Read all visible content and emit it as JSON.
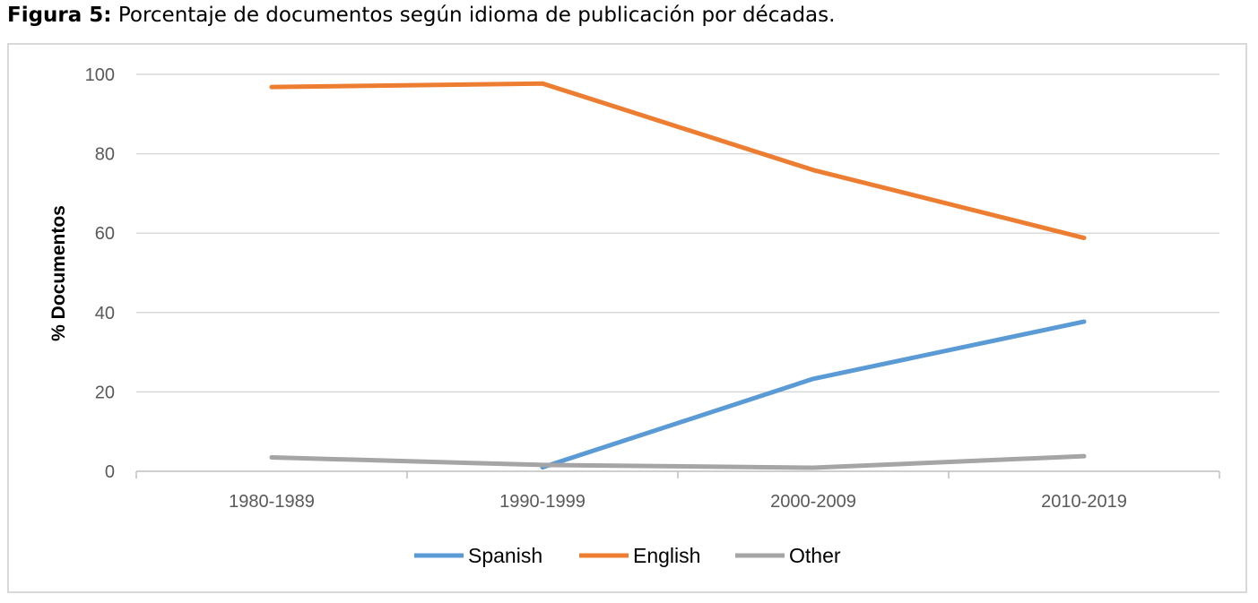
{
  "caption": {
    "label": "Figura 5:",
    "text": "Porcentaje de documentos según idioma de publicación por décadas."
  },
  "chart_data": {
    "type": "line",
    "title": "",
    "xlabel": "",
    "ylabel": "% Documentos",
    "ylim": [
      0,
      100
    ],
    "yticks": [
      0,
      20,
      40,
      60,
      80,
      100
    ],
    "grid": true,
    "legend_position": "bottom",
    "categories": [
      "1980-1989",
      "1990-1999",
      "2000-2009",
      "2010-2019"
    ],
    "series": [
      {
        "name": "Spanish",
        "color": "#5b9bd5",
        "values": [
          null,
          1.0,
          23.3,
          37.7
        ]
      },
      {
        "name": "English",
        "color": "#ed7d31",
        "values": [
          96.8,
          97.7,
          75.9,
          58.8
        ]
      },
      {
        "name": "Other",
        "color": "#a5a5a5",
        "values": [
          3.5,
          1.6,
          0.9,
          3.8
        ]
      }
    ]
  }
}
